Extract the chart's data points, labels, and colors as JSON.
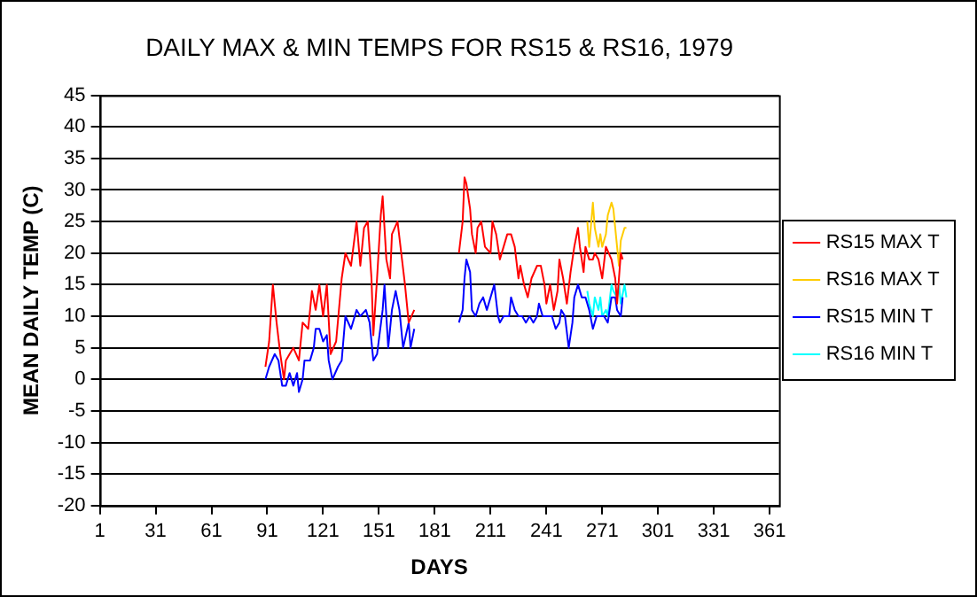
{
  "chart_data": {
    "type": "line",
    "title": "DAILY MAX & MIN TEMPS FOR RS15 & RS16, 1979",
    "xlabel": "DAYS",
    "ylabel": "MEAN DAILY TEMP (C)",
    "xlim": [
      1,
      366
    ],
    "xticks": [
      1,
      31,
      61,
      91,
      121,
      151,
      181,
      211,
      241,
      271,
      301,
      331,
      361
    ],
    "ylim": [
      -20,
      45
    ],
    "yticks": [
      -20,
      -15,
      -10,
      -5,
      0,
      5,
      10,
      15,
      20,
      25,
      30,
      35,
      40,
      45
    ],
    "grid": "y",
    "legend": "right",
    "marker": "none",
    "line_style": "solid",
    "series": [
      {
        "name": "RS15 MAX T",
        "color": "#ff0000",
        "x": [
          90,
          92,
          94,
          96,
          98,
          100,
          101,
          103,
          105,
          108,
          110,
          113,
          115,
          117,
          119,
          121,
          123,
          125,
          128,
          131,
          133,
          136,
          139,
          141,
          143,
          145,
          147,
          148,
          150,
          152,
          153,
          155,
          157,
          158,
          161,
          163,
          165,
          167,
          170,
          182,
          194,
          196,
          197,
          198,
          200,
          201,
          203,
          204,
          206,
          208,
          211,
          212,
          214,
          216,
          218,
          220,
          222,
          224,
          226,
          227,
          229,
          231,
          233,
          236,
          238,
          240,
          241,
          243,
          245,
          247,
          248,
          250,
          252,
          254,
          256,
          258,
          259,
          261,
          262,
          264,
          266,
          267,
          269,
          271,
          273,
          276,
          278,
          279,
          281,
          282
        ],
        "values": [
          2,
          6,
          15,
          9,
          4,
          0,
          3,
          4,
          5,
          3,
          9,
          8,
          14,
          11,
          15,
          10,
          15,
          4,
          6,
          16,
          20,
          18,
          25,
          18,
          24,
          25,
          16,
          7,
          16,
          26,
          29,
          19,
          16,
          23,
          25,
          20,
          15,
          9,
          11,
          null,
          20,
          25,
          32,
          31,
          27,
          23,
          20,
          24,
          25,
          21,
          20,
          25,
          23,
          19,
          21,
          23,
          23,
          21,
          16,
          18,
          15,
          13,
          16,
          18,
          18,
          15,
          12,
          15,
          11,
          14,
          19,
          16,
          12,
          17,
          21,
          24,
          21,
          17,
          21,
          19,
          19,
          20,
          19,
          16,
          21,
          19,
          16,
          12,
          20,
          19
        ]
      },
      {
        "name": "RS16 MAX T",
        "color": "#ffcc00",
        "x": [
          263,
          264,
          266,
          267,
          269,
          270,
          271,
          273,
          274,
          276,
          277,
          279,
          280,
          281,
          283,
          284
        ],
        "values": [
          25,
          21,
          28,
          24,
          21,
          23,
          21,
          23,
          26,
          28,
          27,
          21,
          18,
          22,
          24,
          24
        ]
      },
      {
        "name": "RS15 MIN T",
        "color": "#0000ff",
        "x": [
          90,
          92,
          95,
          97,
          99,
          101,
          103,
          105,
          107,
          108,
          110,
          111,
          114,
          116,
          117,
          119,
          121,
          123,
          124,
          126,
          129,
          131,
          133,
          136,
          139,
          141,
          144,
          146,
          148,
          150,
          153,
          154,
          156,
          158,
          160,
          162,
          164,
          167,
          168,
          170,
          182,
          194,
          196,
          197,
          198,
          200,
          201,
          203,
          205,
          207,
          209,
          211,
          213,
          215,
          216,
          218,
          221,
          222,
          224,
          226,
          228,
          230,
          232,
          234,
          236,
          237,
          239,
          241,
          244,
          246,
          248,
          249,
          251,
          253,
          255,
          256,
          258,
          260,
          262,
          264,
          266,
          268,
          270,
          272,
          274,
          276,
          278,
          279,
          281,
          282
        ],
        "values": [
          0,
          2,
          4,
          3,
          -1,
          -1,
          1,
          -1,
          1,
          -2,
          0,
          3,
          3,
          5,
          8,
          8,
          6,
          7,
          3,
          0,
          2,
          3,
          10,
          8,
          11,
          10,
          11,
          9,
          3,
          4,
          11,
          15,
          5,
          11,
          14,
          11,
          5,
          9,
          5,
          8,
          null,
          9,
          11,
          16,
          19,
          17,
          11,
          10,
          12,
          13,
          11,
          13,
          15,
          10,
          9,
          10,
          10,
          13,
          11,
          10,
          10,
          9,
          10,
          9,
          10,
          12,
          10,
          10,
          10,
          8,
          9,
          11,
          10,
          5,
          9,
          13,
          15,
          13,
          13,
          11,
          8,
          10,
          10,
          10,
          9,
          13,
          13,
          11,
          10,
          13
        ]
      },
      {
        "name": "RS16 MIN T",
        "color": "#00ffff",
        "x": [
          263,
          264,
          266,
          267,
          269,
          270,
          271,
          273,
          274,
          276,
          277,
          279,
          280,
          281,
          283,
          284
        ],
        "values": [
          14,
          12,
          10,
          13,
          11,
          13,
          10,
          11,
          10,
          15,
          14,
          13,
          15,
          12,
          15,
          13
        ]
      }
    ]
  }
}
